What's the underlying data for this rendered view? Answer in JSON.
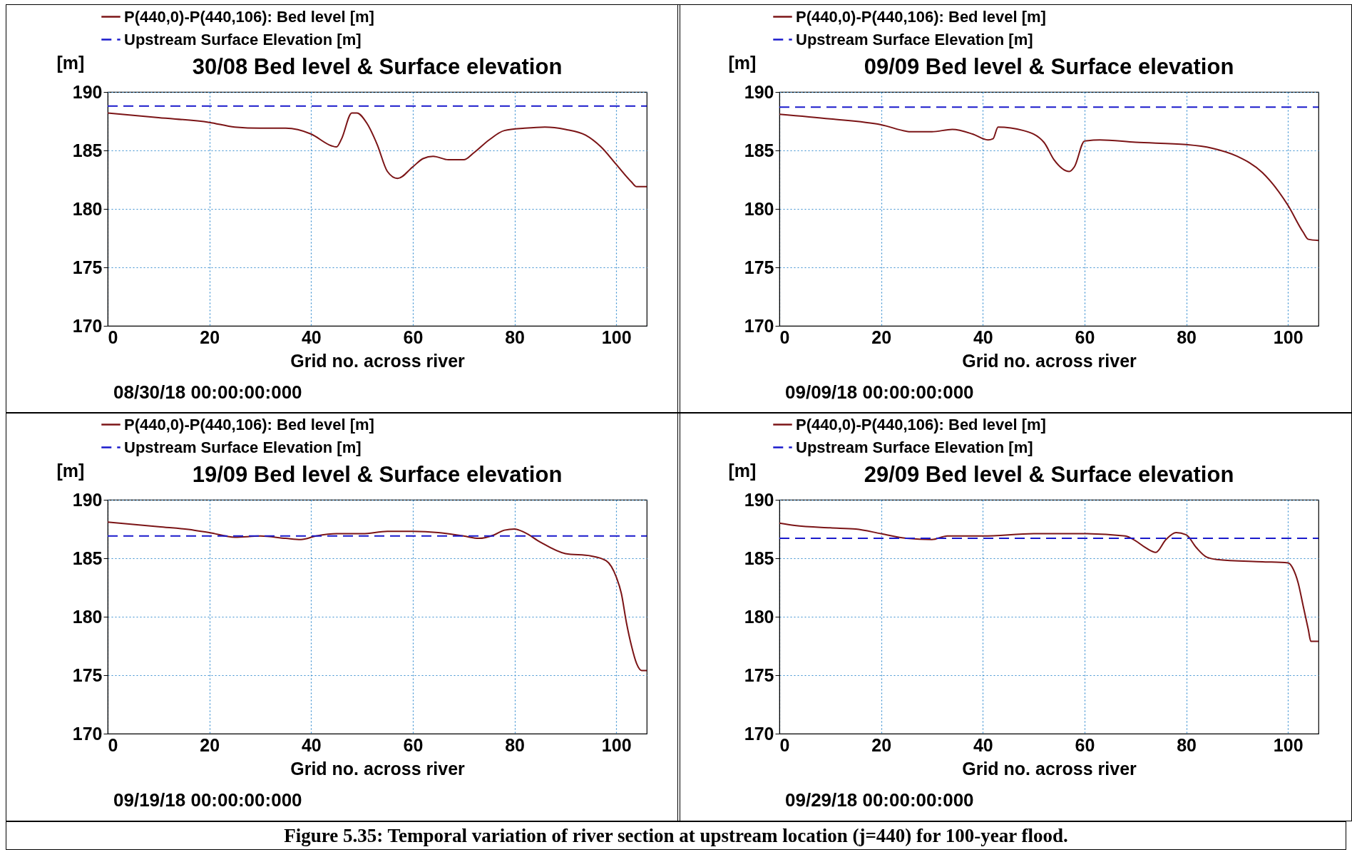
{
  "chart_data": [
    {
      "type": "line",
      "title": "30/08 Bed level & Surface elevation",
      "xlabel": "Grid no. across river",
      "ylabel": "[m]",
      "xlim": [
        0,
        106
      ],
      "xticks": [
        0,
        20,
        40,
        60,
        80,
        100
      ],
      "ylim": [
        170,
        190
      ],
      "yticks": [
        170,
        175,
        180,
        185,
        190
      ],
      "grid": true,
      "legend": "top left",
      "annotations": [
        "08/30/18 00:00:00:000"
      ],
      "series": [
        {
          "name": "P(440,0)-P(440,106): Bed level [m]",
          "color": "#7b1416",
          "line_style": "solid",
          "x": [
            0,
            10,
            20,
            25,
            30,
            35,
            40,
            44,
            45,
            46,
            48,
            49,
            51,
            53,
            55,
            57,
            60,
            62,
            64,
            67,
            70,
            72,
            75,
            78,
            82,
            86,
            90,
            94,
            97,
            100,
            103,
            104,
            106
          ],
          "values": [
            188.2,
            187.8,
            187.4,
            187.0,
            186.9,
            186.9,
            186.4,
            185.4,
            185.3,
            186.0,
            188.2,
            188.2,
            187.3,
            185.5,
            183.2,
            182.6,
            183.6,
            184.3,
            184.5,
            184.2,
            184.2,
            184.8,
            185.9,
            186.7,
            186.9,
            187.0,
            186.8,
            186.3,
            185.3,
            183.8,
            182.3,
            181.9,
            181.9
          ]
        },
        {
          "name": "Upstream Surface Elevation [m]",
          "color": "#1a1acc",
          "line_style": "dashed",
          "x": [
            0,
            106
          ],
          "values": [
            188.8,
            188.8
          ]
        }
      ]
    },
    {
      "type": "line",
      "title": "09/09 Bed level & Surface elevation",
      "xlabel": "Grid no. across river",
      "ylabel": "[m]",
      "xlim": [
        0,
        106
      ],
      "xticks": [
        0,
        20,
        40,
        60,
        80,
        100
      ],
      "ylim": [
        170,
        190
      ],
      "yticks": [
        170,
        175,
        180,
        185,
        190
      ],
      "grid": true,
      "legend": "top left",
      "annotations": [
        "09/09/18 00:00:00:000"
      ],
      "series": [
        {
          "name": "P(440,0)-P(440,106): Bed level [m]",
          "color": "#7b1416",
          "line_style": "solid",
          "x": [
            0,
            10,
            20,
            26,
            30,
            34,
            38,
            41,
            42,
            43,
            48,
            52,
            54,
            57,
            58,
            60,
            63,
            70,
            80,
            85,
            90,
            95,
            100,
            103,
            104,
            106
          ],
          "values": [
            188.1,
            187.7,
            187.2,
            186.6,
            186.6,
            186.8,
            186.4,
            185.9,
            186.0,
            187.0,
            186.7,
            185.7,
            184.2,
            183.2,
            183.6,
            185.8,
            185.9,
            185.7,
            185.5,
            185.2,
            184.5,
            183.1,
            180.3,
            178.0,
            177.4,
            177.3
          ]
        },
        {
          "name": "Upstream Surface Elevation [m]",
          "color": "#1a1acc",
          "line_style": "dashed",
          "x": [
            0,
            106
          ],
          "values": [
            188.7,
            188.7
          ]
        }
      ]
    },
    {
      "type": "line",
      "title": "19/09 Bed level & Surface elevation",
      "xlabel": "Grid no. across river",
      "ylabel": "[m]",
      "xlim": [
        0,
        106
      ],
      "xticks": [
        0,
        20,
        40,
        60,
        80,
        100
      ],
      "ylim": [
        170,
        190
      ],
      "yticks": [
        170,
        175,
        180,
        185,
        190
      ],
      "grid": true,
      "legend": "top left",
      "annotations": [
        "09/19/18 00:00:00:000"
      ],
      "series": [
        {
          "name": "P(440,0)-P(440,106): Bed level [m]",
          "color": "#7b1416",
          "line_style": "solid",
          "x": [
            0,
            10,
            17,
            20,
            25,
            30,
            35,
            38,
            41,
            45,
            50,
            55,
            60,
            65,
            70,
            73,
            76,
            78,
            80,
            82,
            85,
            90,
            95,
            98,
            100,
            101,
            102,
            103,
            104,
            105,
            106
          ],
          "values": [
            188.1,
            187.7,
            187.4,
            187.2,
            186.8,
            186.9,
            186.7,
            186.6,
            186.9,
            187.1,
            187.1,
            187.3,
            187.3,
            187.2,
            186.9,
            186.7,
            187.0,
            187.4,
            187.5,
            187.2,
            186.4,
            185.4,
            185.2,
            184.8,
            183.4,
            182.0,
            179.5,
            177.5,
            176.0,
            175.4,
            175.4
          ]
        },
        {
          "name": "Upstream Surface Elevation [m]",
          "color": "#1a1acc",
          "line_style": "dashed",
          "x": [
            0,
            106
          ],
          "values": [
            186.9,
            186.9
          ]
        }
      ]
    },
    {
      "type": "line",
      "title": "29/09 Bed level & Surface elevation",
      "xlabel": "Grid no. across river",
      "ylabel": "[m]",
      "xlim": [
        0,
        106
      ],
      "xticks": [
        0,
        20,
        40,
        60,
        80,
        100
      ],
      "ylim": [
        170,
        190
      ],
      "yticks": [
        170,
        175,
        180,
        185,
        190
      ],
      "grid": true,
      "legend": "top left",
      "annotations": [
        "09/29/18 00:00:00:000",
        "Figure 5.35: Temporal variation of river section at upstream location (j=440) for 100-year flood."
      ],
      "series": [
        {
          "name": "P(440,0)-P(440,106): Bed level [m]",
          "color": "#7b1416",
          "line_style": "solid",
          "x": [
            0,
            3,
            10,
            15,
            20,
            25,
            30,
            33,
            40,
            50,
            60,
            68,
            70,
            72,
            74,
            76,
            78,
            80,
            82,
            84,
            86,
            95,
            100,
            101,
            102,
            103,
            104,
            104.5,
            106
          ],
          "values": [
            188.0,
            187.8,
            187.6,
            187.5,
            187.1,
            186.7,
            186.6,
            186.9,
            186.9,
            187.1,
            187.1,
            186.9,
            186.5,
            185.9,
            185.5,
            186.6,
            187.2,
            187.0,
            185.9,
            185.1,
            184.9,
            184.7,
            184.6,
            184.1,
            182.9,
            180.9,
            178.9,
            177.9,
            177.9
          ]
        },
        {
          "name": "Upstream Surface Elevation [m]",
          "color": "#1a1acc",
          "line_style": "dashed",
          "x": [
            0,
            106
          ],
          "values": [
            186.7,
            186.7
          ]
        }
      ]
    }
  ]
}
